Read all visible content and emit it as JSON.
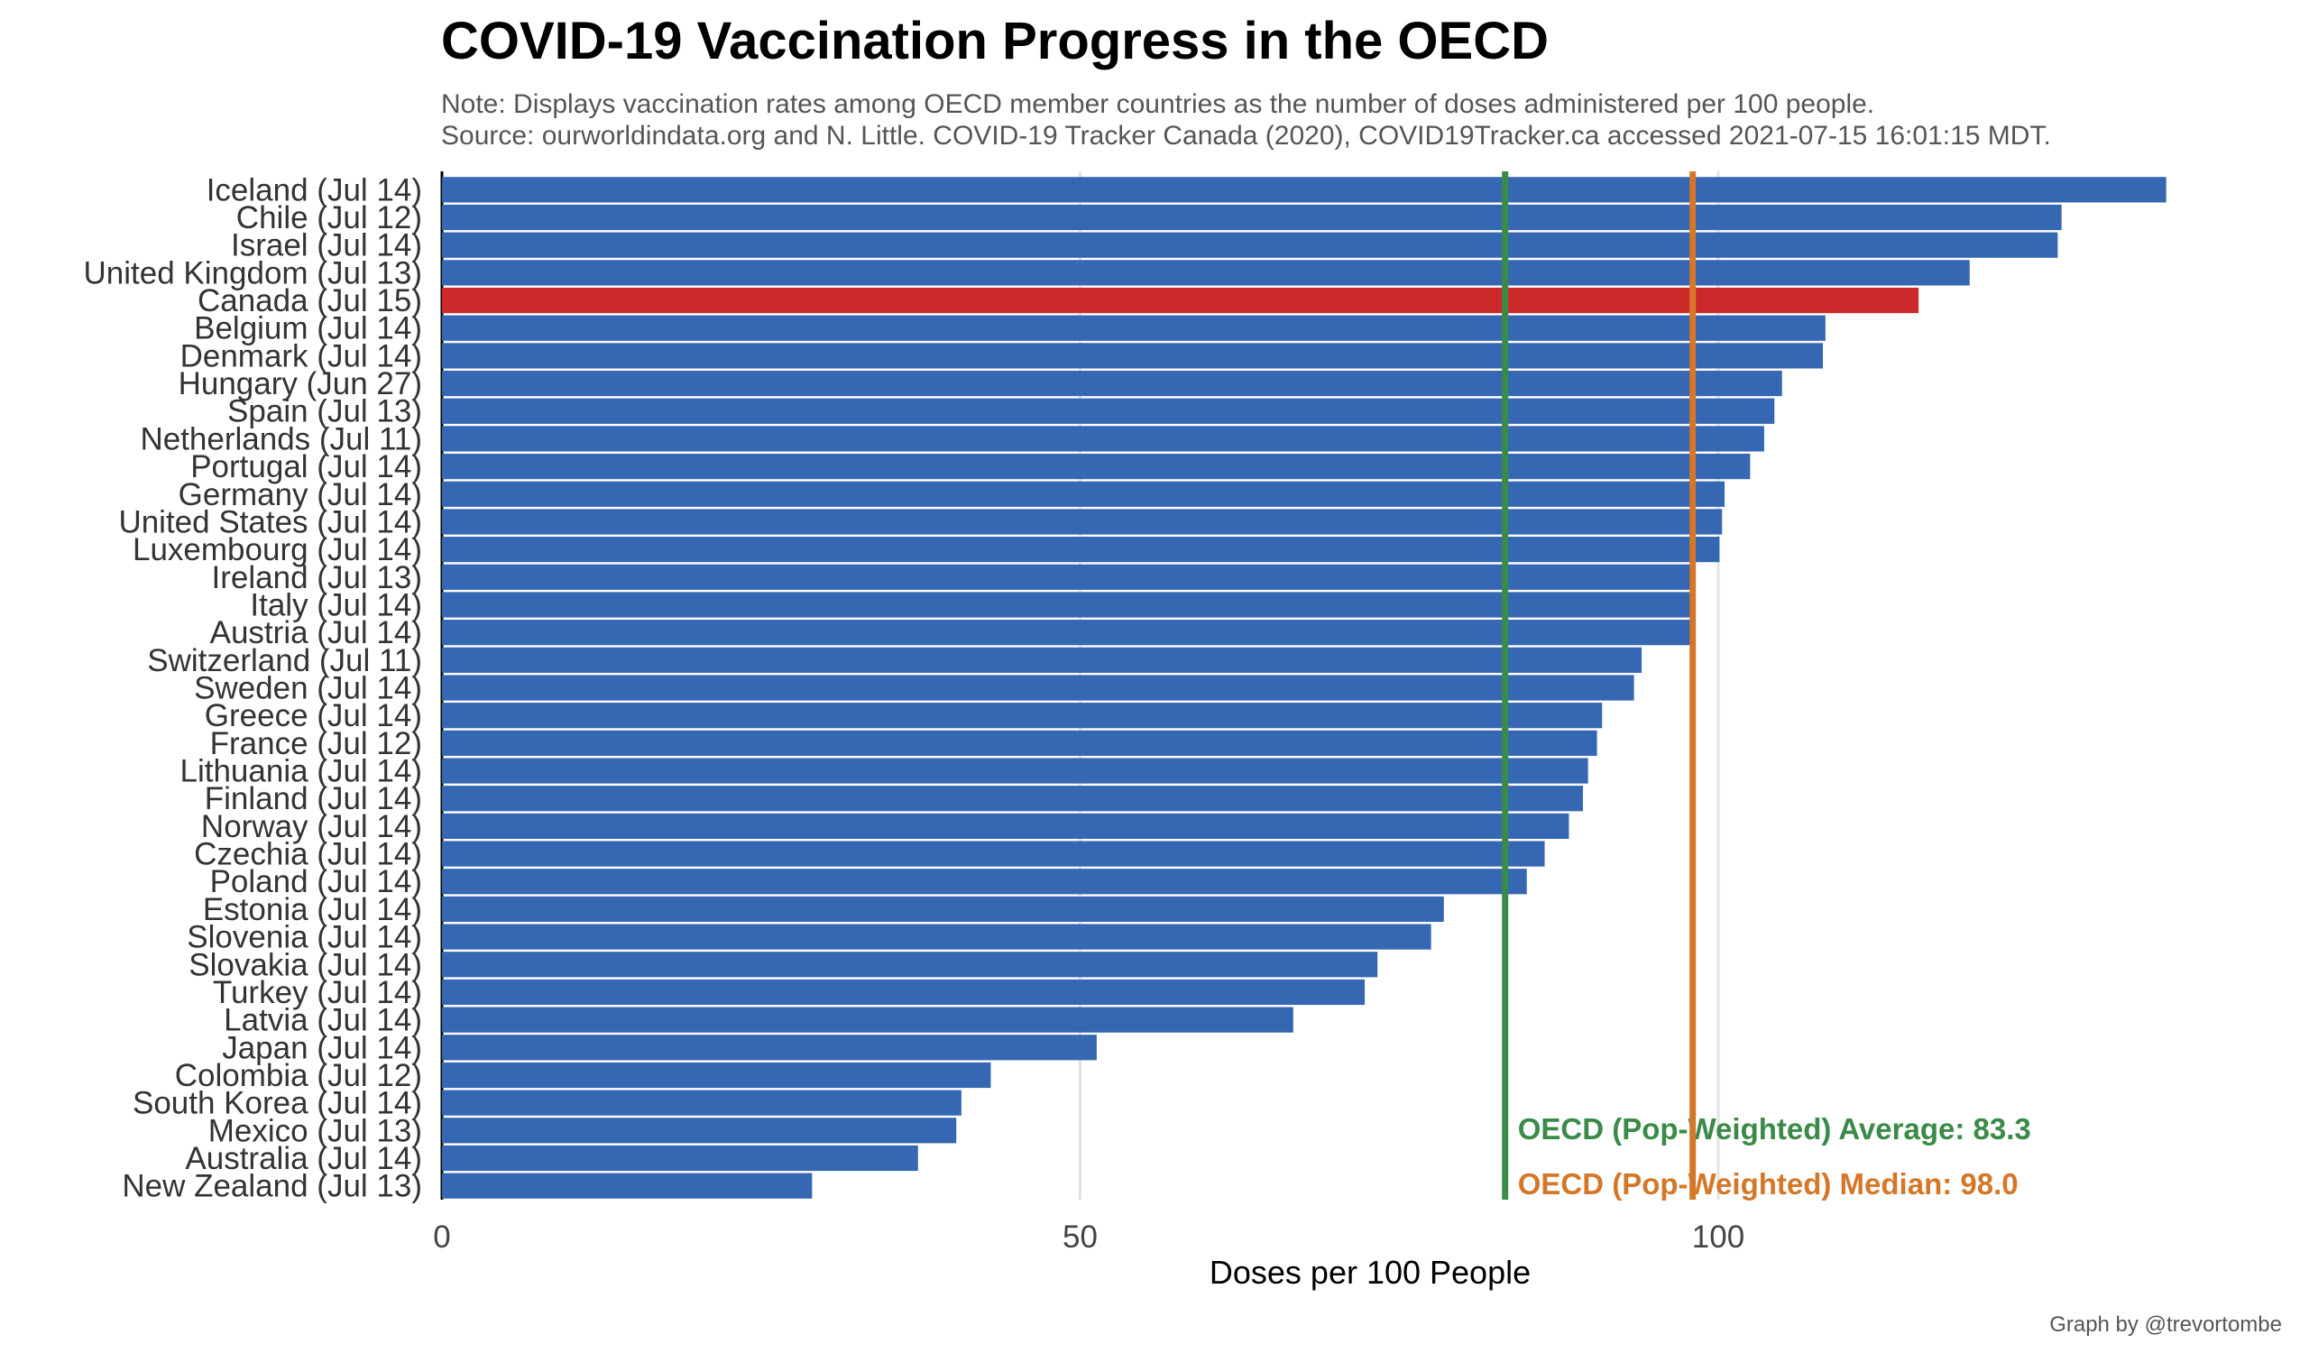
{
  "title": "COVID-19 Vaccination Progress in the OECD",
  "note": "Note: Displays vaccination rates among OECD member countries as the number of doses administered per 100 people.",
  "source": "Source: ourworldindata.org and N. Little. COVID-19 Tracker Canada (2020), COVID19Tracker.ca accessed 2021-07-15 16:01:15  MDT.",
  "credit": "Graph by @trevortombe",
  "colors": {
    "bar": "#3567b3",
    "highlight": "#cc2a2a",
    "average": "#3a8a48",
    "median": "#d47728",
    "grid": "#e3e3e3"
  },
  "chart_data": {
    "type": "bar",
    "orientation": "horizontal",
    "title": "COVID-19 Vaccination Progress in the OECD",
    "xlabel": "Doses per 100 People",
    "ylabel": "",
    "xlim": [
      0,
      136
    ],
    "xticks": [
      0,
      50,
      100
    ],
    "grid": true,
    "highlight": "Canada (Jul 15)",
    "categories": [
      "Iceland (Jul 14)",
      "Chile (Jul 12)",
      "Israel (Jul 14)",
      "United Kingdom (Jul 13)",
      "Canada (Jul 15)",
      "Belgium (Jul 14)",
      "Denmark (Jul 14)",
      "Hungary (Jun 27)",
      "Spain (Jul 13)",
      "Netherlands (Jul 11)",
      "Portugal (Jul 14)",
      "Germany (Jul 14)",
      "United States (Jul 14)",
      "Luxembourg (Jul 14)",
      "Ireland (Jul 13)",
      "Italy (Jul 14)",
      "Austria (Jul 14)",
      "Switzerland (Jul 11)",
      "Sweden (Jul 14)",
      "Greece (Jul 14)",
      "France (Jul 12)",
      "Lithuania (Jul 14)",
      "Finland (Jul 14)",
      "Norway (Jul 14)",
      "Czechia (Jul 14)",
      "Poland (Jul 14)",
      "Estonia (Jul 14)",
      "Slovenia (Jul 14)",
      "Slovakia (Jul 14)",
      "Turkey (Jul 14)",
      "Latvia (Jul 14)",
      "Japan (Jul 14)",
      "Colombia (Jul 12)",
      "South Korea (Jul 14)",
      "Mexico (Jul 13)",
      "Australia (Jul 14)",
      "New Zealand (Jul 13)"
    ],
    "values": [
      135.1,
      126.9,
      126.6,
      119.7,
      115.7,
      108.4,
      108.2,
      105.0,
      104.4,
      103.6,
      102.5,
      100.5,
      100.3,
      100.1,
      97.8,
      97.8,
      97.8,
      94.0,
      93.4,
      90.9,
      90.5,
      89.8,
      89.4,
      88.3,
      86.4,
      85.0,
      78.5,
      77.5,
      73.3,
      72.3,
      66.7,
      51.3,
      43.0,
      40.7,
      40.3,
      37.3,
      29.0
    ],
    "reference_lines": [
      {
        "label": "OECD (Pop-Weighted) Average: 83.3",
        "value": 83.3,
        "color": "#3a8a48"
      },
      {
        "label": "OECD (Pop-Weighted) Median: 98.0",
        "value": 98.0,
        "color": "#d47728"
      }
    ]
  }
}
